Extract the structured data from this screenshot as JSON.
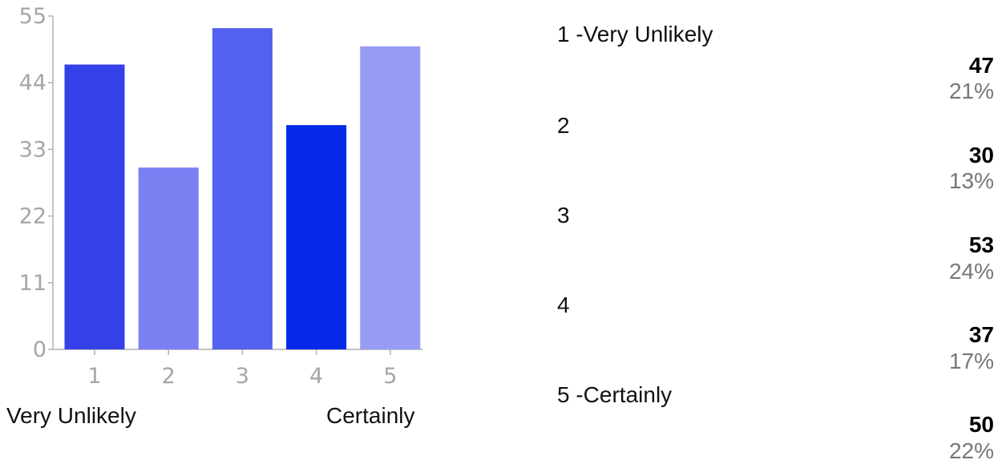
{
  "chart_data": {
    "type": "bar",
    "categories": [
      "1",
      "2",
      "3",
      "4",
      "5"
    ],
    "values": [
      47,
      30,
      53,
      37,
      50
    ],
    "colors": [
      "#3541e8",
      "#7a80f2",
      "#5460ee",
      "#0429e8",
      "#989cf3"
    ],
    "yticks": [
      0,
      11,
      22,
      33,
      44,
      55
    ],
    "ylim": [
      0,
      55
    ],
    "xlabel_left": "Very Unlikely",
    "xlabel_right": "Certainly",
    "grid": false
  },
  "summary": {
    "rows": [
      {
        "label": "1 -Very Unlikely",
        "count": "47",
        "percent": "21%"
      },
      {
        "label": "2",
        "count": "30",
        "percent": "13%"
      },
      {
        "label": "3",
        "count": "53",
        "percent": "24%"
      },
      {
        "label": "4",
        "count": "37",
        "percent": "17%"
      },
      {
        "label": "5 -Certainly",
        "count": "50",
        "percent": "22%"
      }
    ]
  }
}
